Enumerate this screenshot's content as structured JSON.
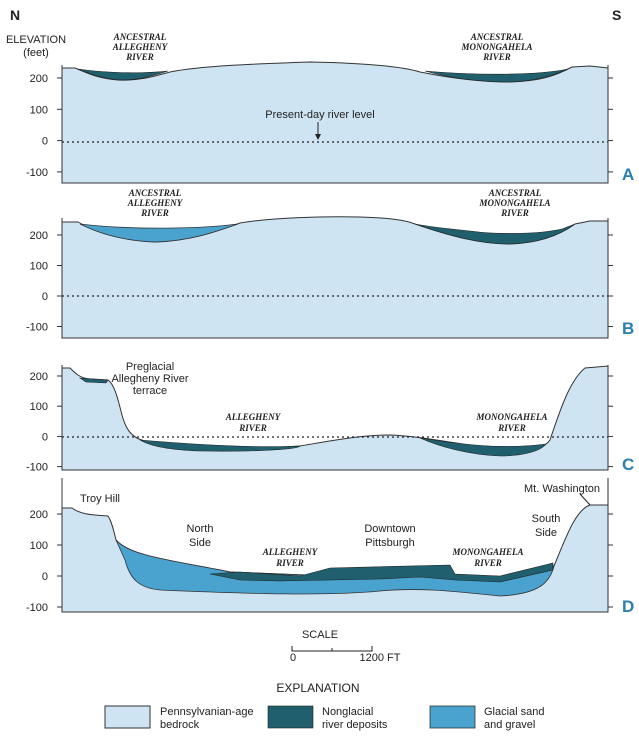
{
  "header": {
    "north": "N",
    "south": "S",
    "y_axis_title": [
      "ELEVATION",
      "(feet)"
    ]
  },
  "y_ticks": [
    "200",
    "100",
    "0",
    "-100"
  ],
  "panels": [
    {
      "label": "A",
      "labels": [
        {
          "lines": [
            "ANCESTRAL",
            "ALLEGHENY",
            "RIVER"
          ]
        },
        {
          "lines": [
            "ANCESTRAL",
            "MONONGAHELA",
            "RIVER"
          ]
        },
        {
          "lines": [
            "Present-day river level"
          ]
        }
      ]
    },
    {
      "label": "B",
      "labels": [
        {
          "lines": [
            "ANCESTRAL",
            "ALLEGHENY",
            "RIVER"
          ]
        },
        {
          "lines": [
            "ANCESTRAL",
            "MONONGAHELA",
            "RIVER"
          ]
        }
      ]
    },
    {
      "label": "C",
      "labels": [
        {
          "lines": [
            "Preglacial",
            "Allegheny River",
            "terrace"
          ]
        },
        {
          "lines": [
            "ALLEGHENY",
            "RIVER"
          ]
        },
        {
          "lines": [
            "MONONGAHELA",
            "RIVER"
          ]
        }
      ]
    },
    {
      "label": "D",
      "labels": [
        {
          "lines": [
            "Troy Hill"
          ]
        },
        {
          "lines": [
            "North",
            "Side"
          ]
        },
        {
          "lines": [
            "ALLEGHENY",
            "RIVER"
          ]
        },
        {
          "lines": [
            "Downtown",
            "Pittsburgh"
          ]
        },
        {
          "lines": [
            "MONONGAHELA",
            "RIVER"
          ]
        },
        {
          "lines": [
            "Mt. Washington"
          ]
        },
        {
          "lines": [
            "South",
            "Side"
          ]
        }
      ]
    }
  ],
  "scale": {
    "title": "SCALE",
    "ticks": [
      "0",
      "1200 FT"
    ]
  },
  "explanation": {
    "title": "EXPLANATION",
    "items": [
      {
        "lines": [
          "Pennsylvanian-age",
          "bedrock"
        ]
      },
      {
        "lines": [
          "Nonglacial",
          "river deposits"
        ]
      },
      {
        "lines": [
          "Glacial sand",
          "and gravel"
        ]
      }
    ]
  }
}
